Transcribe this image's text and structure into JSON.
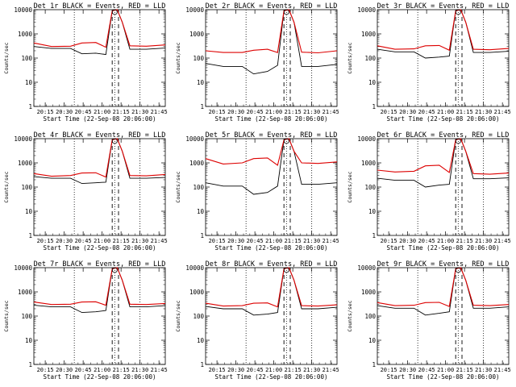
{
  "figure": {
    "time_axis_label": "Start Time (22-Sep-08 20:06:00)",
    "y_axis_label": "Counts/sec",
    "x_tick_labels": [
      "20:15",
      "20:30",
      "20:45",
      "21:00",
      "21:15",
      "21:30",
      "21:45"
    ],
    "y_tick_labels": [
      "1",
      "10",
      "100",
      "1000",
      "10000"
    ],
    "colors": {
      "events": "#000000",
      "lld": "#dd0000"
    }
  },
  "chart_data": [
    {
      "type": "line",
      "title": "Det 1r BLACK = Events, RED = LLD",
      "xlabel": "Start Time (22-Sep-08 20:06:00)",
      "ylabel": "Counts/sec",
      "yscale": "log",
      "ylim": [
        1,
        10000
      ],
      "xlim": [
        "20:06",
        "21:50"
      ],
      "x": [
        "20:06",
        "20:20",
        "20:35",
        "20:44",
        "20:55",
        "21:03",
        "21:08",
        "21:12",
        "21:16",
        "21:22",
        "21:35",
        "21:50"
      ],
      "series": [
        {
          "name": "Events",
          "values": [
            300,
            250,
            250,
            150,
            160,
            140,
            9000,
            10000,
            3000,
            230,
            230,
            260
          ]
        },
        {
          "name": "LLD",
          "values": [
            420,
            300,
            310,
            420,
            440,
            280,
            9000,
            10000,
            3000,
            320,
            310,
            350
          ]
        }
      ],
      "dotted_lines": [
        "20:38",
        "21:10",
        "21:30"
      ],
      "dashed_lines": [
        "21:08",
        "21:13"
      ]
    },
    {
      "type": "line",
      "title": "Det 2r BLACK = Events, RED = LLD",
      "xlabel": "Start Time (22-Sep-08 20:06:00)",
      "ylabel": "Counts/sec",
      "yscale": "log",
      "ylim": [
        1,
        10000
      ],
      "xlim": [
        "20:06",
        "21:50"
      ],
      "x": [
        "20:06",
        "20:20",
        "20:35",
        "20:44",
        "20:55",
        "21:03",
        "21:08",
        "21:12",
        "21:16",
        "21:22",
        "21:35",
        "21:50"
      ],
      "series": [
        {
          "name": "Events",
          "values": [
            60,
            45,
            45,
            22,
            28,
            50,
            9000,
            10000,
            3000,
            45,
            45,
            55
          ]
        },
        {
          "name": "LLD",
          "values": [
            200,
            170,
            170,
            210,
            230,
            170,
            9000,
            10000,
            3000,
            175,
            165,
            200
          ]
        }
      ],
      "dotted_lines": [
        "20:38",
        "21:10",
        "21:30"
      ],
      "dashed_lines": [
        "21:08",
        "21:13"
      ]
    },
    {
      "type": "line",
      "title": "Det 3r BLACK = Events, RED = LLD",
      "xlabel": "Start Time (22-Sep-08 20:06:00)",
      "ylabel": "Counts/sec",
      "yscale": "log",
      "ylim": [
        1,
        10000
      ],
      "xlim": [
        "20:06",
        "21:50"
      ],
      "x": [
        "20:06",
        "20:20",
        "20:35",
        "20:44",
        "20:55",
        "21:03",
        "21:08",
        "21:12",
        "21:16",
        "21:22",
        "21:35",
        "21:50"
      ],
      "series": [
        {
          "name": "Events",
          "values": [
            230,
            180,
            180,
            100,
            110,
            120,
            9000,
            10000,
            3000,
            170,
            170,
            190
          ]
        },
        {
          "name": "LLD",
          "values": [
            320,
            230,
            240,
            320,
            330,
            210,
            9000,
            10000,
            3000,
            230,
            220,
            250
          ]
        }
      ],
      "dotted_lines": [
        "20:38",
        "21:10",
        "21:30"
      ],
      "dashed_lines": [
        "21:08",
        "21:13"
      ]
    },
    {
      "type": "line",
      "title": "Det 4r BLACK = Events, RED = LLD",
      "xlabel": "Start Time (22-Sep-08 20:06:00)",
      "ylabel": "Counts/sec",
      "yscale": "log",
      "ylim": [
        1,
        10000
      ],
      "xlim": [
        "20:06",
        "21:50"
      ],
      "x": [
        "20:06",
        "20:20",
        "20:35",
        "20:44",
        "20:55",
        "21:03",
        "21:08",
        "21:12",
        "21:16",
        "21:22",
        "21:35",
        "21:50"
      ],
      "series": [
        {
          "name": "Events",
          "values": [
            270,
            230,
            230,
            140,
            150,
            160,
            9000,
            10000,
            3000,
            230,
            230,
            250
          ]
        },
        {
          "name": "LLD",
          "values": [
            360,
            280,
            300,
            380,
            390,
            260,
            9000,
            10000,
            3000,
            300,
            290,
            330
          ]
        }
      ],
      "dotted_lines": [
        "20:38",
        "21:10",
        "21:30"
      ],
      "dashed_lines": [
        "21:08",
        "21:13"
      ]
    },
    {
      "type": "line",
      "title": "Det 5r BLACK = Events, RED = LLD",
      "xlabel": "Start Time (22-Sep-08 20:06:00)",
      "ylabel": "Counts/sec",
      "yscale": "log",
      "ylim": [
        1,
        10000
      ],
      "xlim": [
        "20:06",
        "21:50"
      ],
      "x": [
        "20:06",
        "20:20",
        "20:35",
        "20:44",
        "20:55",
        "21:03",
        "21:08",
        "21:12",
        "21:16",
        "21:22",
        "21:35",
        "21:50"
      ],
      "series": [
        {
          "name": "Events",
          "values": [
            150,
            110,
            110,
            50,
            60,
            110,
            9000,
            10000,
            3000,
            130,
            130,
            150
          ]
        },
        {
          "name": "LLD",
          "values": [
            1500,
            900,
            1000,
            1500,
            1600,
            800,
            9000,
            10000,
            3000,
            1000,
            950,
            1100
          ]
        }
      ],
      "dotted_lines": [
        "20:38",
        "21:10",
        "21:30"
      ],
      "dashed_lines": [
        "21:08",
        "21:13"
      ]
    },
    {
      "type": "line",
      "title": "Det 6r BLACK = Events, RED = LLD",
      "xlabel": "Start Time (22-Sep-08 20:06:00)",
      "ylabel": "Counts/sec",
      "yscale": "log",
      "ylim": [
        1,
        10000
      ],
      "xlim": [
        "20:06",
        "21:50"
      ],
      "x": [
        "20:06",
        "20:20",
        "20:35",
        "20:44",
        "20:55",
        "21:03",
        "21:08",
        "21:12",
        "21:16",
        "21:22",
        "21:35",
        "21:50"
      ],
      "series": [
        {
          "name": "Events",
          "values": [
            230,
            190,
            190,
            100,
            120,
            130,
            9000,
            10000,
            3000,
            220,
            220,
            240
          ]
        },
        {
          "name": "LLD",
          "values": [
            500,
            420,
            450,
            750,
            800,
            400,
            9000,
            10000,
            3000,
            360,
            340,
            380
          ]
        }
      ],
      "dotted_lines": [
        "20:38",
        "21:10",
        "21:30"
      ],
      "dashed_lines": [
        "21:08",
        "21:13"
      ]
    },
    {
      "type": "line",
      "title": "Det 7r BLACK = Events, RED = LLD",
      "xlabel": "Start Time (22-Sep-08 20:06:00)",
      "ylabel": "Counts/sec",
      "yscale": "log",
      "ylim": [
        1,
        10000
      ],
      "xlim": [
        "20:06",
        "21:50"
      ],
      "x": [
        "20:06",
        "20:20",
        "20:35",
        "20:44",
        "20:55",
        "21:03",
        "21:08",
        "21:12",
        "21:16",
        "21:22",
        "21:35",
        "21:50"
      ],
      "series": [
        {
          "name": "Events",
          "values": [
            280,
            240,
            240,
            140,
            150,
            170,
            9000,
            10000,
            3000,
            240,
            240,
            270
          ]
        },
        {
          "name": "LLD",
          "values": [
            380,
            300,
            310,
            380,
            390,
            280,
            9000,
            10000,
            3000,
            310,
            300,
            330
          ]
        }
      ],
      "dotted_lines": [
        "20:38",
        "21:10",
        "21:30"
      ],
      "dashed_lines": [
        "21:08",
        "21:13"
      ]
    },
    {
      "type": "line",
      "title": "Det 8r BLACK = Events, RED = LLD",
      "xlabel": "Start Time (22-Sep-08 20:06:00)",
      "ylabel": "Counts/sec",
      "yscale": "log",
      "ylim": [
        1,
        10000
      ],
      "xlim": [
        "20:06",
        "21:50"
      ],
      "x": [
        "20:06",
        "20:20",
        "20:35",
        "20:44",
        "20:55",
        "21:03",
        "21:08",
        "21:12",
        "21:16",
        "21:22",
        "21:35",
        "21:50"
      ],
      "series": [
        {
          "name": "Events",
          "values": [
            250,
            200,
            200,
            110,
            120,
            140,
            9000,
            10000,
            3000,
            200,
            200,
            230
          ]
        },
        {
          "name": "LLD",
          "values": [
            340,
            260,
            270,
            340,
            350,
            240,
            9000,
            10000,
            3000,
            270,
            260,
            290
          ]
        }
      ],
      "dotted_lines": [
        "20:38",
        "21:10",
        "21:30"
      ],
      "dashed_lines": [
        "21:08",
        "21:13"
      ]
    },
    {
      "type": "line",
      "title": "Det 9r BLACK = Events, RED = LLD",
      "xlabel": "Start Time (22-Sep-08 20:06:00)",
      "ylabel": "Counts/sec",
      "yscale": "log",
      "ylim": [
        1,
        10000
      ],
      "xlim": [
        "20:06",
        "21:50"
      ],
      "x": [
        "20:06",
        "20:20",
        "20:35",
        "20:44",
        "20:55",
        "21:03",
        "21:08",
        "21:12",
        "21:16",
        "21:22",
        "21:35",
        "21:50"
      ],
      "series": [
        {
          "name": "Events",
          "values": [
            270,
            210,
            210,
            110,
            130,
            150,
            9000,
            10000,
            3000,
            210,
            210,
            240
          ]
        },
        {
          "name": "LLD",
          "values": [
            360,
            270,
            280,
            360,
            370,
            250,
            9000,
            10000,
            3000,
            280,
            270,
            300
          ]
        }
      ],
      "dotted_lines": [
        "20:38",
        "21:10",
        "21:30"
      ],
      "dashed_lines": [
        "21:08",
        "21:13"
      ]
    }
  ]
}
